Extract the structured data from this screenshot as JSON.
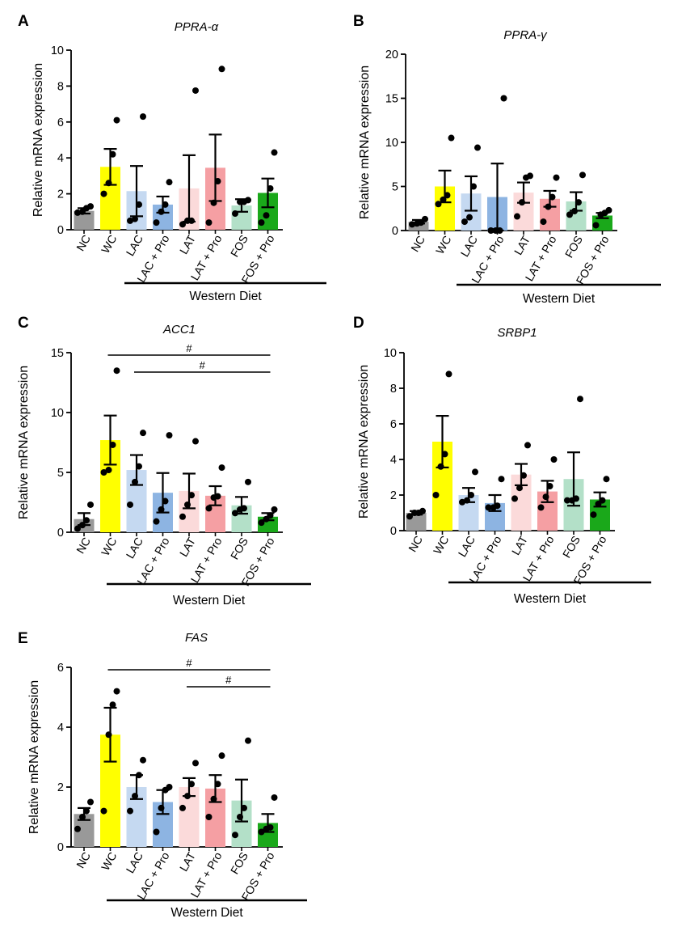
{
  "colors": {
    "NC": "#999999",
    "WC": "#ffff00",
    "LAC": "#c5d9f1",
    "LAC + Pro": "#8db4e2",
    "LAT": "#fbdada",
    "LAT + Pro": "#f59fa3",
    "FOS": "#b3e0c8",
    "FOS + Pro": "#1aa81a",
    "axis": "#000000"
  },
  "chart_data": [
    {
      "panel": "A",
      "type": "bar",
      "title": "PPRA-α",
      "ylabel": "Relative mRNA expression",
      "group_label": "Western Diet",
      "categories": [
        "NC",
        "WC",
        "LAC",
        "LAC + Pro",
        "LAT",
        "LAT + Pro",
        "FOS",
        "FOS + Pro"
      ],
      "values": [
        1.05,
        3.5,
        2.15,
        1.4,
        2.3,
        3.45,
        1.35,
        2.05
      ],
      "sem": [
        0.15,
        1.0,
        1.4,
        0.45,
        1.85,
        1.85,
        0.35,
        0.8
      ],
      "points": [
        [
          0.95,
          1.0,
          1.2,
          1.3
        ],
        [
          2.0,
          2.6,
          4.2,
          6.1
        ],
        [
          0.5,
          0.6,
          1.4,
          6.3
        ],
        [
          0.4,
          1.0,
          1.4,
          2.65
        ],
        [
          0.3,
          0.5,
          0.5,
          7.75
        ],
        [
          0.4,
          1.5,
          2.7,
          8.95
        ],
        [
          0.9,
          1.55,
          1.55,
          1.65
        ],
        [
          0.4,
          0.8,
          2.3,
          4.3
        ]
      ],
      "ylim": [
        0,
        10
      ],
      "yticks": [
        "0",
        "2",
        "4",
        "6",
        "8",
        "10"
      ]
    },
    {
      "panel": "B",
      "type": "bar",
      "title": "PPRA-γ",
      "ylabel": "Relative mRNA expression",
      "group_label": "Western Diet",
      "categories": [
        "NC",
        "WC",
        "LAC",
        "LAC + Pro",
        "LAT",
        "LAT + Pro",
        "FOS",
        "FOS + Pro"
      ],
      "values": [
        1.0,
        5.0,
        4.2,
        3.8,
        4.3,
        3.6,
        3.3,
        1.7
      ],
      "sem": [
        0.2,
        1.8,
        1.95,
        3.8,
        1.15,
        0.9,
        1.05,
        0.3
      ],
      "points": [
        [
          0.7,
          0.8,
          0.9,
          1.3
        ],
        [
          3.0,
          3.5,
          4.0,
          10.5
        ],
        [
          1.0,
          1.5,
          5.0,
          9.4
        ],
        [
          0.0,
          0.0,
          0.0,
          15.0
        ],
        [
          1.6,
          3.2,
          6.0,
          6.2
        ],
        [
          1.0,
          2.7,
          3.8,
          6.0
        ],
        [
          1.8,
          2.2,
          3.2,
          6.3
        ],
        [
          0.6,
          1.8,
          2.0,
          2.3
        ]
      ],
      "ylim": [
        0,
        20
      ],
      "yticks": [
        "0",
        "5",
        "10",
        "15",
        "20"
      ]
    },
    {
      "panel": "C",
      "type": "bar",
      "title": "ACC1",
      "ylabel": "Relative mRNA expression",
      "group_label": "Western Diet",
      "categories": [
        "NC",
        "WC",
        "LAC",
        "LAC + Pro",
        "LAT",
        "LAT + Pro",
        "FOS",
        "FOS + Pro"
      ],
      "values": [
        1.1,
        7.7,
        5.2,
        3.3,
        3.45,
        3.05,
        2.25,
        1.3
      ],
      "sem": [
        0.5,
        2.05,
        1.25,
        1.65,
        1.45,
        0.8,
        0.7,
        0.3
      ],
      "points": [
        [
          0.3,
          0.6,
          1.0,
          2.3
        ],
        [
          5.0,
          5.2,
          7.3,
          13.5
        ],
        [
          2.3,
          4.2,
          5.5,
          8.3
        ],
        [
          0.9,
          1.9,
          2.6,
          8.1
        ],
        [
          1.3,
          2.3,
          3.1,
          7.6
        ],
        [
          2.0,
          2.9,
          3.0,
          5.4
        ],
        [
          1.6,
          1.9,
          2.0,
          4.2
        ],
        [
          0.8,
          1.1,
          1.4,
          1.9
        ]
      ],
      "ylim": [
        0,
        15
      ],
      "yticks": [
        "0",
        "5",
        "10",
        "15"
      ],
      "annotations": [
        {
          "from": "WC",
          "to": "FOS + Pro",
          "label": "#"
        },
        {
          "from": "LAC",
          "to": "FOS + Pro",
          "label": "#"
        }
      ]
    },
    {
      "panel": "D",
      "type": "bar",
      "title": "SRBP1",
      "ylabel": "Relative mRNA expression",
      "group_label": "Western Diet",
      "categories": [
        "NC",
        "WC",
        "LAC",
        "LAC + Pro",
        "LAT",
        "LAT + Pro",
        "FOS",
        "FOS + Pro"
      ],
      "values": [
        1.0,
        5.0,
        2.0,
        1.55,
        3.15,
        2.2,
        2.9,
        1.75
      ],
      "sem": [
        0.1,
        1.45,
        0.4,
        0.45,
        0.6,
        0.6,
        1.5,
        0.4
      ],
      "points": [
        [
          0.8,
          1.0,
          1.0,
          1.1
        ],
        [
          2.0,
          3.6,
          4.3,
          8.8
        ],
        [
          1.6,
          1.7,
          2.0,
          3.3
        ],
        [
          1.3,
          1.3,
          1.4,
          2.9
        ],
        [
          1.8,
          2.4,
          3.1,
          4.8
        ],
        [
          1.3,
          1.9,
          2.5,
          4.0
        ],
        [
          1.7,
          1.7,
          1.8,
          7.4
        ],
        [
          0.9,
          1.5,
          1.7,
          2.9
        ]
      ],
      "ylim": [
        0,
        10
      ],
      "yticks": [
        "0",
        "2",
        "4",
        "6",
        "8",
        "10"
      ]
    },
    {
      "panel": "E",
      "type": "bar",
      "title": "FAS",
      "ylabel": "Relative mRNA expression",
      "group_label": "Western Diet",
      "categories": [
        "NC",
        "WC",
        "LAC",
        "LAC + Pro",
        "LAT",
        "LAT + Pro",
        "FOS",
        "FOS + Pro"
      ],
      "values": [
        1.1,
        3.75,
        2.0,
        1.5,
        2.0,
        1.95,
        1.55,
        0.8
      ],
      "sem": [
        0.2,
        0.9,
        0.4,
        0.4,
        0.3,
        0.45,
        0.7,
        0.3
      ],
      "points": [
        [
          0.6,
          1.0,
          1.2,
          1.5
        ],
        [
          1.2,
          3.75,
          4.75,
          5.2
        ],
        [
          1.2,
          1.7,
          2.4,
          2.9
        ],
        [
          0.5,
          1.3,
          1.9,
          2.0
        ],
        [
          1.3,
          1.7,
          2.1,
          2.8
        ],
        [
          1.0,
          1.6,
          2.1,
          3.05
        ],
        [
          0.4,
          1.0,
          1.3,
          3.55
        ],
        [
          0.5,
          0.6,
          0.65,
          1.65
        ]
      ],
      "ylim": [
        0,
        6
      ],
      "yticks": [
        "0",
        "2",
        "4",
        "6"
      ],
      "annotations": [
        {
          "from": "WC",
          "to": "FOS + Pro",
          "label": "#"
        },
        {
          "from": "LAT",
          "to": "FOS + Pro",
          "label": "#"
        }
      ]
    }
  ]
}
